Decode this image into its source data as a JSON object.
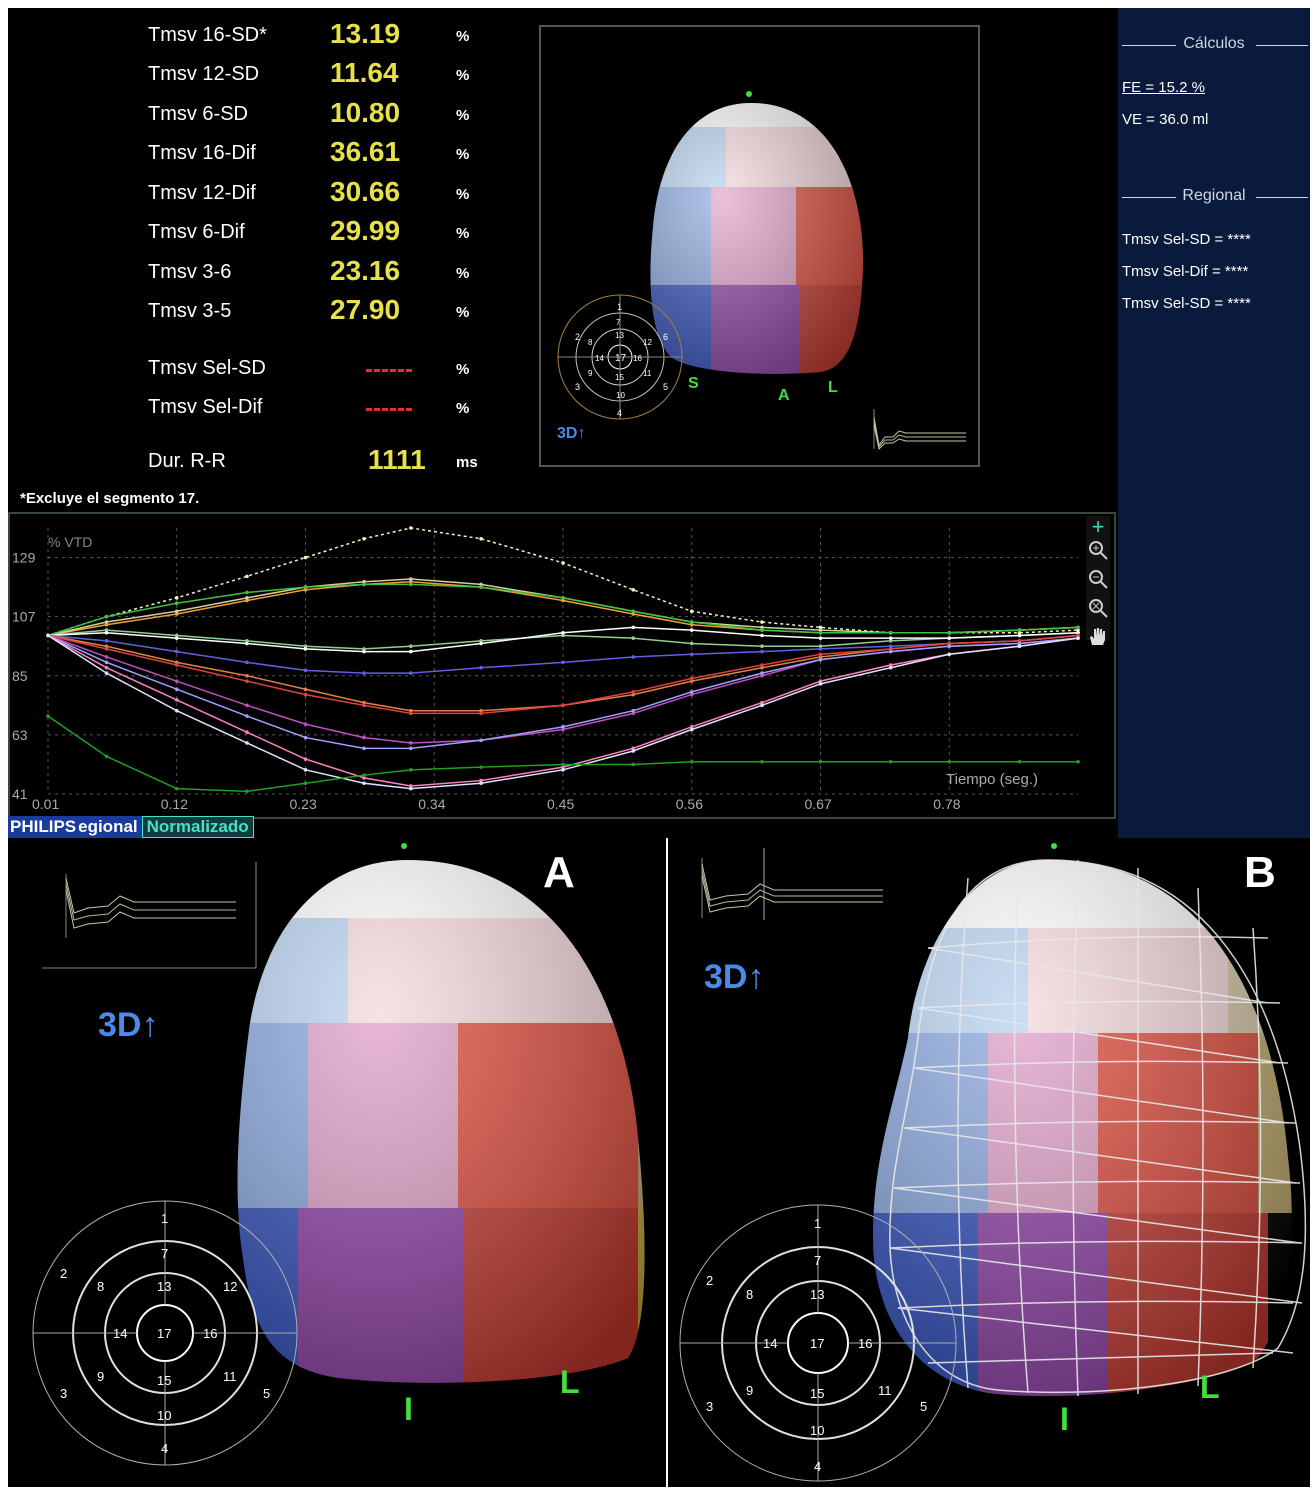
{
  "measurements": [
    {
      "label": "Tmsv 16-SD*",
      "value": "13.19",
      "unit": "%"
    },
    {
      "label": "Tmsv 12-SD",
      "value": "11.64",
      "unit": "%"
    },
    {
      "label": "Tmsv 6-SD",
      "value": "10.80",
      "unit": "%"
    },
    {
      "label": "Tmsv 16-Dif",
      "value": "36.61",
      "unit": "%"
    },
    {
      "label": "Tmsv 12-Dif",
      "value": "30.66",
      "unit": "%"
    },
    {
      "label": "Tmsv 6-Dif",
      "value": "29.99",
      "unit": "%"
    },
    {
      "label": "Tmsv 3-6",
      "value": "23.16",
      "unit": "%"
    },
    {
      "label": "Tmsv 3-5",
      "value": "27.90",
      "unit": "%"
    }
  ],
  "selected": [
    {
      "label": "Tmsv Sel-SD",
      "unit": "%"
    },
    {
      "label": "Tmsv Sel-Dif",
      "unit": "%"
    }
  ],
  "duration": {
    "label": "Dur. R-R",
    "value": "1111",
    "unit": "ms"
  },
  "footnote": "*Excluye el segmento 17.",
  "sidebar": {
    "calc_title": "Cálculos",
    "fe": "FE = 15.2 %",
    "ve": "VE = 36.0 ml",
    "regional_title": "Regional",
    "regional_rows": [
      "Tmsv Sel-SD = ****",
      "Tmsv Sel-Dif = ****",
      "Tmsv Sel-SD = ****"
    ]
  },
  "viewer": {
    "mode_label": "3D↑",
    "orient_labels": [
      "S",
      "I",
      "A",
      "L"
    ]
  },
  "bullseye": {
    "segments": [
      "1",
      "2",
      "3",
      "4",
      "5",
      "6",
      "7",
      "8",
      "9",
      "10",
      "11",
      "12",
      "13",
      "14",
      "15",
      "16",
      "17"
    ]
  },
  "tabs": {
    "brand": "PHILIPS",
    "regional": "egional",
    "normalized": "Normalizado"
  },
  "panels": {
    "a_label": "A",
    "b_label": "B"
  },
  "chart_data": {
    "type": "line",
    "ylabel": "% VTD",
    "xlabel": "Tiempo (seg.)",
    "x_ticks": [
      "0.01",
      "0.12",
      "0.23",
      "0.34",
      "0.45",
      "0.56",
      "0.67",
      "0.78"
    ],
    "y_ticks": [
      "129",
      "107",
      "85",
      "63",
      "41"
    ],
    "xlim": [
      0.01,
      0.89
    ],
    "ylim": [
      41,
      140
    ],
    "grid": true,
    "x": [
      0.01,
      0.06,
      0.12,
      0.18,
      0.23,
      0.28,
      0.32,
      0.38,
      0.45,
      0.51,
      0.56,
      0.62,
      0.67,
      0.73,
      0.78,
      0.84,
      0.89
    ],
    "series": [
      {
        "color": "#f2f2c0",
        "values": [
          100,
          107,
          114,
          122,
          129,
          136,
          140,
          136,
          127,
          117,
          109,
          105,
          103,
          101,
          101,
          101,
          102
        ]
      },
      {
        "color": "#f0a030",
        "values": [
          100,
          104,
          108,
          113,
          117,
          119,
          120,
          118,
          113,
          108,
          104,
          102,
          101,
          101,
          101,
          102,
          103
        ]
      },
      {
        "color": "#d0d0a0",
        "values": [
          100,
          105,
          109,
          114,
          118,
          120,
          121,
          119,
          114,
          109,
          105,
          103,
          102,
          101,
          101,
          102,
          103
        ]
      },
      {
        "color": "#40c040",
        "values": [
          100,
          107,
          112,
          116,
          118,
          119,
          119,
          118,
          114,
          109,
          105,
          102,
          101,
          101,
          101,
          102,
          103
        ]
      },
      {
        "color": "#90d090",
        "values": [
          100,
          102,
          100,
          98,
          96,
          95,
          96,
          98,
          100,
          99,
          97,
          96,
          96,
          98,
          99,
          100,
          101
        ]
      },
      {
        "color": "#ffffff",
        "values": [
          100,
          101,
          99,
          97,
          95,
          94,
          94,
          97,
          101,
          103,
          102,
          100,
          99,
          99,
          99,
          100,
          101
        ]
      },
      {
        "color": "#6060e0",
        "values": [
          100,
          98,
          94,
          90,
          87,
          86,
          86,
          88,
          90,
          92,
          93,
          94,
          95,
          96,
          97,
          98,
          100
        ]
      },
      {
        "color": "#e08040",
        "values": [
          100,
          96,
          90,
          85,
          80,
          75,
          72,
          72,
          74,
          78,
          83,
          88,
          92,
          95,
          97,
          98,
          100
        ]
      },
      {
        "color": "#e04040",
        "values": [
          100,
          95,
          89,
          83,
          78,
          74,
          71,
          71,
          74,
          79,
          84,
          89,
          93,
          95,
          97,
          98,
          100
        ]
      },
      {
        "color": "#c050c0",
        "values": [
          100,
          92,
          83,
          74,
          67,
          62,
          60,
          61,
          65,
          71,
          78,
          85,
          91,
          94,
          96,
          97,
          99
        ]
      },
      {
        "color": "#a0a0ff",
        "values": [
          100,
          90,
          80,
          70,
          62,
          58,
          58,
          61,
          66,
          72,
          79,
          86,
          91,
          94,
          96,
          97,
          99
        ]
      },
      {
        "color": "#ff80c0",
        "values": [
          100,
          88,
          76,
          64,
          54,
          47,
          44,
          46,
          51,
          58,
          66,
          75,
          83,
          89,
          93,
          96,
          99
        ]
      },
      {
        "color": "#e0e0ff",
        "values": [
          100,
          86,
          72,
          60,
          50,
          45,
          43,
          45,
          50,
          57,
          65,
          74,
          82,
          88,
          93,
          96,
          99
        ]
      },
      {
        "color": "#20a020",
        "values": [
          70,
          55,
          43,
          42,
          45,
          48,
          50,
          51,
          52,
          52,
          53,
          53,
          53,
          53,
          53,
          53,
          53
        ]
      }
    ]
  }
}
